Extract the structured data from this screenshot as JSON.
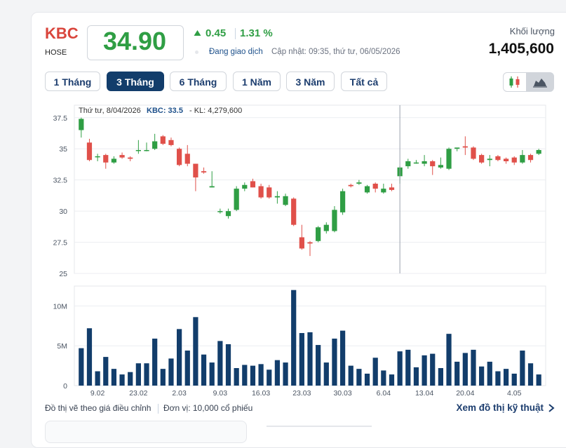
{
  "header": {
    "ticker": "KBC",
    "exchange": "HOSE",
    "price": "34.90",
    "change": "0.45",
    "change_pct": "1.31 %",
    "status": "Đang giao dịch",
    "update_text": "Cập nhật: 09:35, thứ tư, 06/05/2026",
    "volume_label": "Khối lượng",
    "volume_value": "1,405,600",
    "up_color": "#2f9e44",
    "down_color": "#e0504a"
  },
  "ranges": [
    {
      "label": "1 Tháng",
      "active": false
    },
    {
      "label": "3 Tháng",
      "active": true
    },
    {
      "label": "6 Tháng",
      "active": false
    },
    {
      "label": "1 Năm",
      "active": false
    },
    {
      "label": "3 Năm",
      "active": false
    },
    {
      "label": "Tất cả",
      "active": false
    }
  ],
  "chart_type_buttons": [
    {
      "icon": "candlestick-icon",
      "active": false
    },
    {
      "icon": "area-chart-icon",
      "active": true
    }
  ],
  "tooltip": {
    "date": "Thứ tư, 8/04/2026",
    "price_label": "KBC: 33.5",
    "volume_label": "- KL: 4,279,600"
  },
  "notes": {
    "adjusted": "Đồ thị vẽ theo giá điều chỉnh",
    "unit": "Đơn vị: 10,000 cổ phiếu",
    "more_link": "Xem đồ thị kỹ thuật"
  },
  "chart_data": {
    "type": "candlestick",
    "price_ylim": [
      25,
      38.5
    ],
    "price_ticks": [
      "37.5",
      "35",
      "32.5",
      "30",
      "27.5",
      "25"
    ],
    "volume_ylim": [
      0,
      12.5
    ],
    "volume_ticks": [
      "10M",
      "5M",
      "0"
    ],
    "x_tick_labels": [
      {
        "i": 2,
        "label": "9.02"
      },
      {
        "i": 7,
        "label": "23.02"
      },
      {
        "i": 12,
        "label": "2.03"
      },
      {
        "i": 17,
        "label": "9.03"
      },
      {
        "i": 22,
        "label": "16.03"
      },
      {
        "i": 27,
        "label": "23.03"
      },
      {
        "i": 32,
        "label": "30.03"
      },
      {
        "i": 37,
        "label": "6.04"
      },
      {
        "i": 42,
        "label": "13.04"
      },
      {
        "i": 47,
        "label": "20.04"
      },
      {
        "i": 53,
        "label": "4.05"
      }
    ],
    "crosshair_index": 39,
    "grid": true,
    "candles": [
      {
        "o": 36.5,
        "h": 37.5,
        "l": 35.9,
        "c": 37.4,
        "v": 4.7
      },
      {
        "o": 35.5,
        "h": 35.8,
        "l": 34.0,
        "c": 34.1,
        "v": 7.2
      },
      {
        "o": 34.4,
        "h": 34.6,
        "l": 34.0,
        "c": 34.4,
        "v": 1.8
      },
      {
        "o": 34.5,
        "h": 34.6,
        "l": 33.4,
        "c": 33.9,
        "v": 3.6
      },
      {
        "o": 33.9,
        "h": 34.4,
        "l": 33.8,
        "c": 34.2,
        "v": 2.1
      },
      {
        "o": 34.5,
        "h": 34.7,
        "l": 34.2,
        "c": 34.3,
        "v": 1.4
      },
      {
        "o": 34.3,
        "h": 34.4,
        "l": 34.0,
        "c": 34.2,
        "v": 1.7
      },
      {
        "o": 34.9,
        "h": 35.7,
        "l": 34.6,
        "c": 34.9,
        "v": 2.8
      },
      {
        "o": 34.9,
        "h": 35.5,
        "l": 34.8,
        "c": 34.9,
        "v": 2.8
      },
      {
        "o": 35.0,
        "h": 36.2,
        "l": 34.9,
        "c": 35.6,
        "v": 5.9
      },
      {
        "o": 36.0,
        "h": 36.1,
        "l": 35.3,
        "c": 35.4,
        "v": 2.1
      },
      {
        "o": 35.7,
        "h": 35.9,
        "l": 35.2,
        "c": 35.3,
        "v": 3.4
      },
      {
        "o": 35.0,
        "h": 35.1,
        "l": 33.6,
        "c": 33.7,
        "v": 7.1
      },
      {
        "o": 34.6,
        "h": 35.3,
        "l": 33.6,
        "c": 33.8,
        "v": 4.4
      },
      {
        "o": 33.8,
        "h": 33.8,
        "l": 31.6,
        "c": 32.7,
        "v": 8.6
      },
      {
        "o": 33.2,
        "h": 33.5,
        "l": 33.0,
        "c": 33.1,
        "v": 3.9
      },
      {
        "o": 31.9,
        "h": 33.2,
        "l": 31.9,
        "c": 32.0,
        "v": 2.9
      },
      {
        "o": 30.0,
        "h": 30.2,
        "l": 29.8,
        "c": 30.0,
        "v": 5.6
      },
      {
        "o": 29.6,
        "h": 30.2,
        "l": 29.4,
        "c": 30.0,
        "v": 5.2
      },
      {
        "o": 30.1,
        "h": 32.0,
        "l": 30.0,
        "c": 31.8,
        "v": 2.2
      },
      {
        "o": 31.8,
        "h": 32.3,
        "l": 31.6,
        "c": 32.1,
        "v": 2.6
      },
      {
        "o": 32.4,
        "h": 32.6,
        "l": 31.9,
        "c": 31.9,
        "v": 2.5
      },
      {
        "o": 32.0,
        "h": 32.2,
        "l": 31.0,
        "c": 31.1,
        "v": 2.7
      },
      {
        "o": 31.9,
        "h": 32.1,
        "l": 31.0,
        "c": 31.1,
        "v": 2.0
      },
      {
        "o": 31.1,
        "h": 31.6,
        "l": 30.6,
        "c": 31.2,
        "v": 3.2
      },
      {
        "o": 30.5,
        "h": 31.4,
        "l": 30.4,
        "c": 31.2,
        "v": 2.9
      },
      {
        "o": 31.0,
        "h": 31.1,
        "l": 28.8,
        "c": 28.9,
        "v": 12.0
      },
      {
        "o": 27.9,
        "h": 28.9,
        "l": 26.9,
        "c": 27.0,
        "v": 6.6
      },
      {
        "o": 27.5,
        "h": 27.6,
        "l": 26.4,
        "c": 27.4,
        "v": 6.7
      },
      {
        "o": 27.6,
        "h": 28.8,
        "l": 27.5,
        "c": 28.7,
        "v": 5.1
      },
      {
        "o": 28.4,
        "h": 29.1,
        "l": 28.2,
        "c": 28.9,
        "v": 2.9
      },
      {
        "o": 28.4,
        "h": 30.4,
        "l": 28.3,
        "c": 30.1,
        "v": 5.9
      },
      {
        "o": 29.9,
        "h": 31.8,
        "l": 29.7,
        "c": 31.6,
        "v": 6.9
      },
      {
        "o": 32.1,
        "h": 32.2,
        "l": 31.9,
        "c": 32.0,
        "v": 2.5
      },
      {
        "o": 32.2,
        "h": 32.5,
        "l": 32.1,
        "c": 32.3,
        "v": 2.1
      },
      {
        "o": 31.5,
        "h": 32.1,
        "l": 31.4,
        "c": 32.0,
        "v": 1.5
      },
      {
        "o": 32.2,
        "h": 32.3,
        "l": 31.5,
        "c": 31.8,
        "v": 3.5
      },
      {
        "o": 31.5,
        "h": 32.2,
        "l": 31.4,
        "c": 31.8,
        "v": 1.9
      },
      {
        "o": 31.9,
        "h": 32.2,
        "l": 31.6,
        "c": 31.7,
        "v": 1.4
      },
      {
        "o": 32.8,
        "h": 33.6,
        "l": 32.2,
        "c": 33.5,
        "v": 4.3
      },
      {
        "o": 33.6,
        "h": 34.2,
        "l": 33.4,
        "c": 34.0,
        "v": 4.5
      },
      {
        "o": 33.9,
        "h": 34.1,
        "l": 33.8,
        "c": 33.9,
        "v": 2.3
      },
      {
        "o": 33.8,
        "h": 34.5,
        "l": 33.6,
        "c": 34.0,
        "v": 3.8
      },
      {
        "o": 34.0,
        "h": 34.1,
        "l": 32.9,
        "c": 33.6,
        "v": 4.0
      },
      {
        "o": 33.5,
        "h": 34.3,
        "l": 33.4,
        "c": 33.7,
        "v": 2.2
      },
      {
        "o": 33.4,
        "h": 35.1,
        "l": 33.3,
        "c": 35.0,
        "v": 6.5
      },
      {
        "o": 35.0,
        "h": 35.1,
        "l": 34.8,
        "c": 35.1,
        "v": 3.0
      },
      {
        "o": 35.2,
        "h": 36.0,
        "l": 34.5,
        "c": 35.1,
        "v": 4.1
      },
      {
        "o": 35.1,
        "h": 35.2,
        "l": 34.1,
        "c": 34.2,
        "v": 4.5
      },
      {
        "o": 34.5,
        "h": 34.6,
        "l": 33.8,
        "c": 33.9,
        "v": 2.4
      },
      {
        "o": 34.1,
        "h": 34.5,
        "l": 33.6,
        "c": 34.2,
        "v": 3.0
      },
      {
        "o": 34.4,
        "h": 34.5,
        "l": 34.0,
        "c": 34.1,
        "v": 1.8
      },
      {
        "o": 34.2,
        "h": 34.3,
        "l": 33.8,
        "c": 34.0,
        "v": 2.1
      },
      {
        "o": 34.3,
        "h": 34.4,
        "l": 33.7,
        "c": 33.9,
        "v": 1.5
      },
      {
        "o": 33.9,
        "h": 34.9,
        "l": 33.8,
        "c": 34.5,
        "v": 4.4
      },
      {
        "o": 34.5,
        "h": 34.6,
        "l": 33.9,
        "c": 34.1,
        "v": 2.8
      },
      {
        "o": 34.6,
        "h": 35.0,
        "l": 34.5,
        "c": 34.9,
        "v": 1.4
      }
    ]
  }
}
